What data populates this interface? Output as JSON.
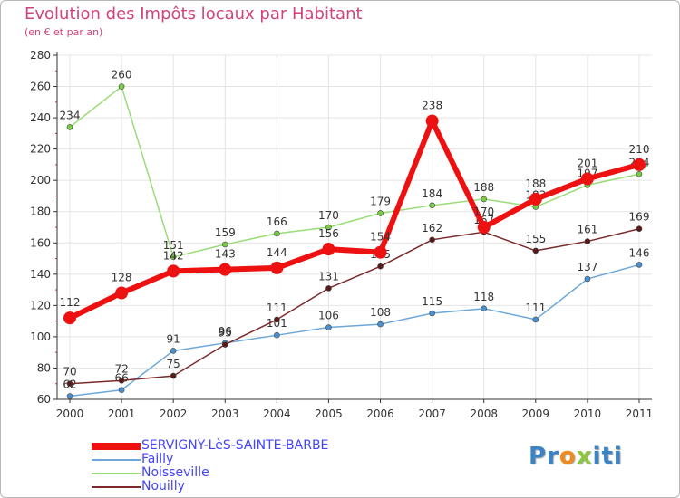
{
  "title": "Evolution des Impôts locaux par Habitant",
  "subtitle": "(en € et par an)",
  "logo": {
    "letters": [
      "P",
      "r",
      "o",
      "x",
      "i",
      "t",
      "i"
    ],
    "colors": [
      "#3a83c4",
      "#3a83c4",
      "#f08a1c",
      "#8dc63f",
      "#3a83c4",
      "#3a83c4",
      "#3a83c4"
    ]
  },
  "colors": {
    "title": "#d0437e",
    "legend_text": "#4444ff",
    "grid": "#e4e4e4",
    "axis": "#333333"
  },
  "chart_data": {
    "type": "line",
    "title": "Evolution des Impôts locaux par Habitant",
    "subtitle": "(en € et par an)",
    "xlabel": "",
    "ylabel": "",
    "x": [
      2000,
      2001,
      2002,
      2003,
      2004,
      2005,
      2006,
      2007,
      2008,
      2009,
      2010,
      2011
    ],
    "x_tick_labels": [
      "2000",
      "2001",
      "2002",
      "2003",
      "2004",
      "2005",
      "2006",
      "2007",
      "2008",
      "2009",
      "2010",
      "2011"
    ],
    "ylim": [
      60,
      280
    ],
    "y_ticks": [
      60,
      80,
      100,
      120,
      140,
      160,
      180,
      200,
      220,
      240,
      260,
      280
    ],
    "y_tick_labels": [
      "60",
      "80",
      "100",
      "120",
      "140",
      "160",
      "180",
      "200",
      "220",
      "240",
      "260",
      "280"
    ],
    "grid": true,
    "legend_position": "bottom-left",
    "series": [
      {
        "name": "Noisseville",
        "color": "#99dd77",
        "marker": "#77cc44",
        "width": 1.5,
        "radius": 3,
        "values": [
          234,
          260,
          151,
          159,
          166,
          170,
          179,
          184,
          188,
          183,
          197,
          204
        ],
        "labels": [
          "234",
          "260",
          "151",
          "159",
          "166",
          "170",
          "179",
          "184",
          "188",
          "183",
          "197",
          "204"
        ]
      },
      {
        "name": "Failly",
        "color": "#6ea8d8",
        "marker": "#4a90d0",
        "width": 1.5,
        "radius": 3,
        "values": [
          62,
          66,
          91,
          96,
          101,
          106,
          108,
          115,
          118,
          111,
          137,
          146
        ],
        "labels": [
          "62",
          "66",
          "91",
          "96",
          "101",
          "106",
          "108",
          "115",
          "118",
          "111",
          "137",
          "146"
        ]
      },
      {
        "name": "Nouilly",
        "color": "#7a2a2a",
        "marker": "#5a1a1a",
        "width": 1.5,
        "radius": 3,
        "values": [
          70,
          72,
          75,
          95,
          111,
          131,
          145,
          162,
          167,
          155,
          161,
          169
        ],
        "labels": [
          "70",
          "72",
          "75",
          "95",
          "111",
          "131",
          "145",
          "162",
          "167",
          "155",
          "161",
          "169"
        ]
      },
      {
        "name": "SERVIGNY-LèS-SAINTE-BARBE",
        "color": "#ee1111",
        "marker": "#ee1111",
        "width": 6,
        "radius": 7,
        "values": [
          112,
          128,
          142,
          143,
          144,
          156,
          154,
          238,
          170,
          188,
          201,
          210
        ],
        "labels": [
          "112",
          "128",
          "142",
          "143",
          "144",
          "156",
          "154",
          "238",
          "170",
          "188",
          "201",
          "210"
        ]
      }
    ],
    "legend_order": [
      "SERVIGNY-LèS-SAINTE-BARBE",
      "Failly",
      "Noisseville",
      "Nouilly"
    ]
  }
}
